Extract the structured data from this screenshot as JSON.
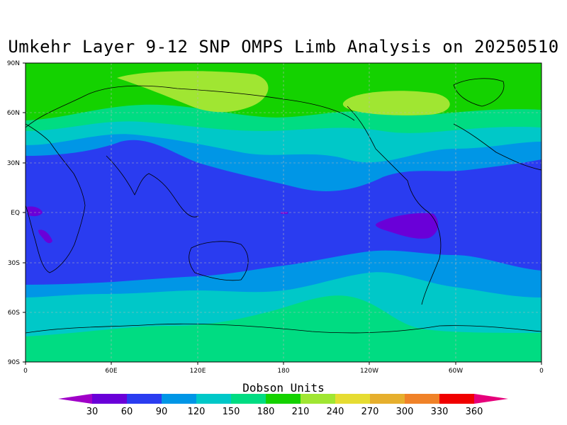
{
  "title": "Umkehr Layer 9-12 SNP OMPS Limb Analysis on 20250510",
  "lat_labels": [
    "90N",
    "60N",
    "30N",
    "EQ",
    "30S",
    "60S",
    "90S"
  ],
  "lon_labels": [
    "0",
    "60E",
    "120E",
    "180",
    "120W",
    "60W",
    "0"
  ],
  "colorbar": {
    "title": "Dobson Units",
    "ticks": [
      "30",
      "60",
      "90",
      "120",
      "150",
      "180",
      "210",
      "240",
      "270",
      "300",
      "330",
      "360"
    ],
    "colors": [
      "#a000c8",
      "#6a00d8",
      "#2a3cf0",
      "#0096e6",
      "#00c8c8",
      "#00dc82",
      "#14d200",
      "#a0e632",
      "#e6dc32",
      "#e6af2d",
      "#f08228",
      "#f00000",
      "#e6007a"
    ]
  },
  "colors": {
    "band_70": "#6a00d8",
    "band_90": "#2a3cf0",
    "band_120": "#0096e6",
    "band_150": "#00c8c8",
    "band_180": "#00dc82",
    "band_210": "#14d200",
    "band_240": "#a0e632"
  }
}
